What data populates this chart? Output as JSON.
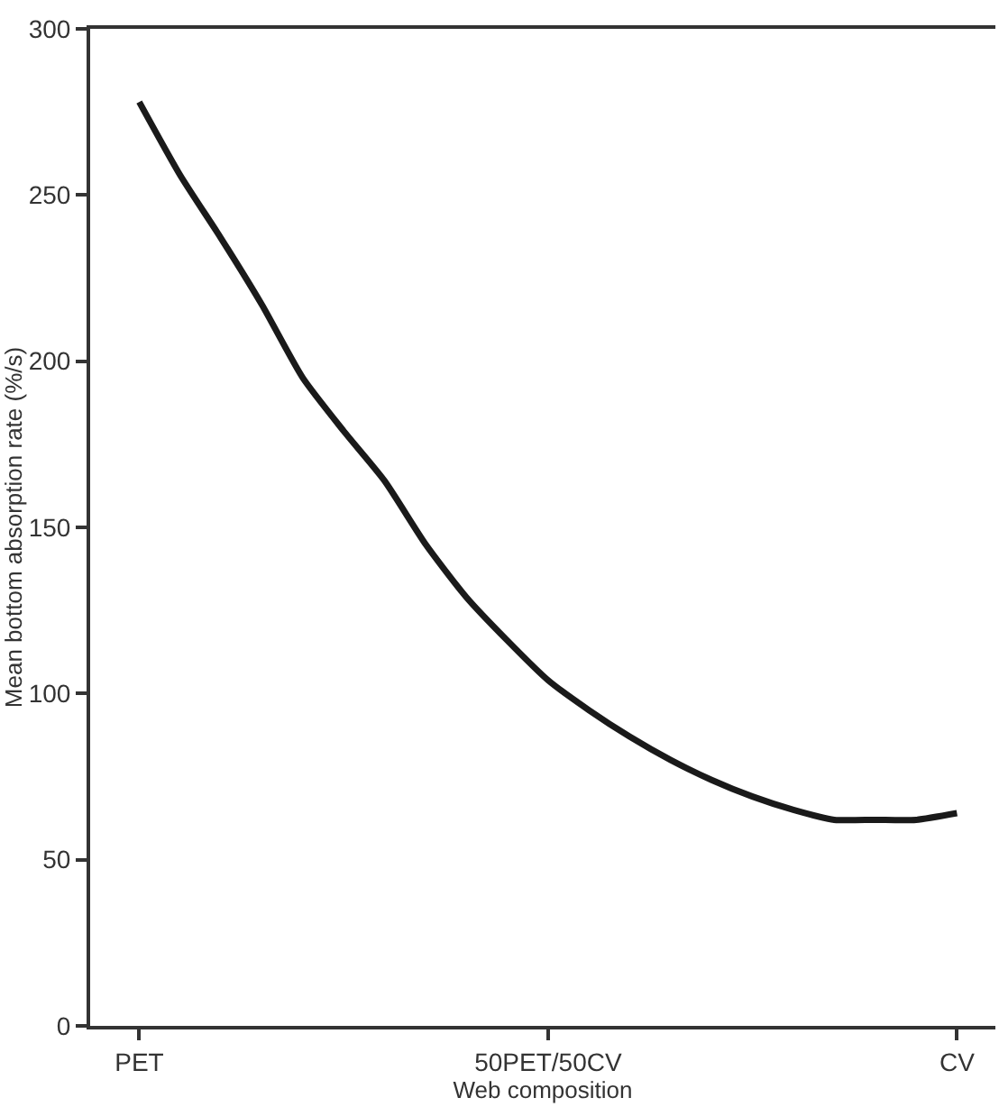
{
  "chart_data": {
    "type": "line",
    "xlabel": "Web composition",
    "ylabel": "Mean bottom absorption rate (%/s)",
    "categories": [
      "PET",
      null,
      null,
      null,
      null,
      null,
      null,
      null,
      null,
      null,
      "50PET/50CV",
      null,
      null,
      null,
      null,
      null,
      null,
      null,
      null,
      null,
      "CV"
    ],
    "series": [
      {
        "color": "#1a1a1a",
        "values": [
          278,
          256,
          237,
          217,
          195,
          179,
          164,
          145,
          129,
          116,
          104,
          95,
          87,
          80,
          74,
          69,
          65,
          62,
          62,
          62,
          64
        ]
      }
    ],
    "ylim": [
      0,
      300
    ],
    "yticks": [
      0,
      50,
      100,
      150,
      200,
      250,
      300
    ],
    "legend": false,
    "marker": "none",
    "line_style": "solid"
  }
}
